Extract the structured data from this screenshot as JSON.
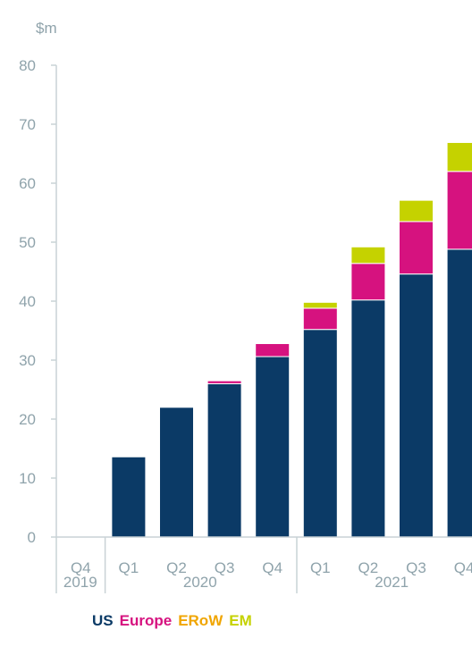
{
  "chart_data": {
    "type": "bar",
    "stacked": true,
    "unit_label": "$m",
    "ylim": [
      0,
      80
    ],
    "y_ticks": [
      0,
      10,
      20,
      30,
      40,
      50,
      60,
      70,
      80
    ],
    "grid": false,
    "categories": [
      "Q4",
      "Q1",
      "Q2",
      "Q3",
      "Q4",
      "Q1",
      "Q2",
      "Q3",
      "Q4"
    ],
    "year_groups": [
      {
        "label": "2019",
        "count": 1
      },
      {
        "label": "2020",
        "count": 4
      },
      {
        "label": "2021",
        "count": 4
      }
    ],
    "series": [
      {
        "name": "US",
        "color": "#0b3a66",
        "values": [
          0,
          13.6,
          22.0,
          26.0,
          30.6,
          35.2,
          40.2,
          44.6,
          48.8
        ]
      },
      {
        "name": "Europe",
        "color": "#d6127f",
        "values": [
          0,
          0,
          0,
          0.5,
          2.2,
          3.6,
          6.2,
          8.9,
          13.2
        ]
      },
      {
        "name": "ERoW",
        "color": "#f0a500",
        "values": [
          0,
          0,
          0,
          0,
          0,
          0,
          0,
          0,
          0
        ]
      },
      {
        "name": "EM",
        "color": "#c5d200",
        "values": [
          0,
          0,
          0,
          0,
          0,
          1.0,
          2.8,
          3.6,
          4.9
        ]
      }
    ],
    "legend_position": "bottom-left",
    "colors": {
      "axis_text": "#8fa3ab",
      "axis_line": "#c9d2d6"
    }
  }
}
